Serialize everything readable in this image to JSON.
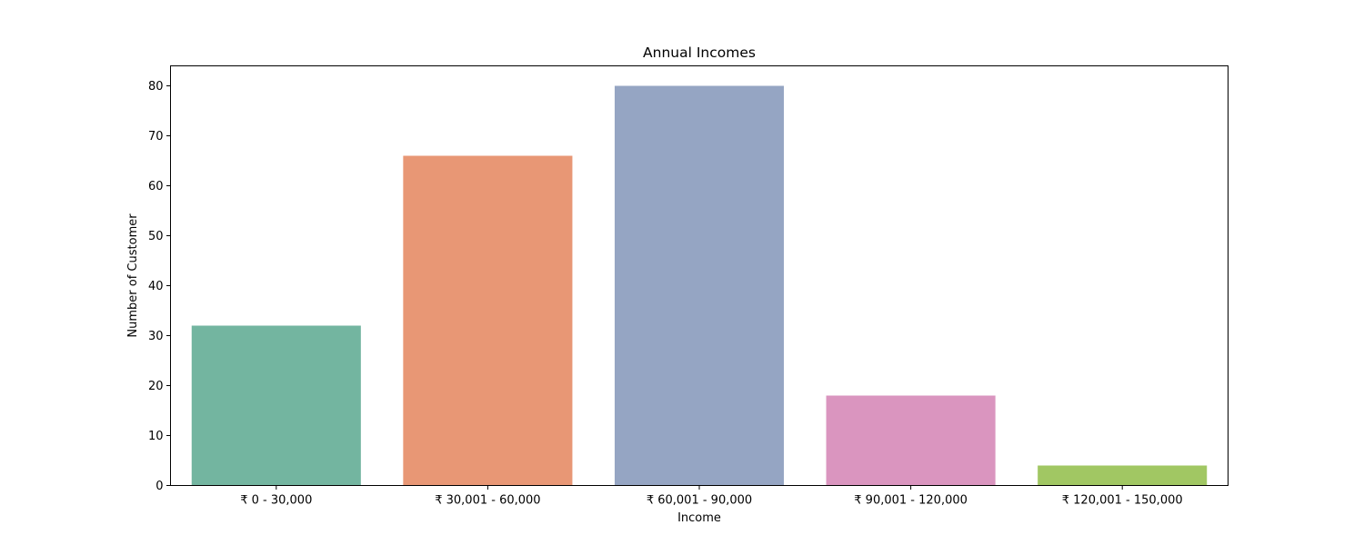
{
  "chart_data": {
    "type": "bar",
    "title": "Annual Incomes",
    "xlabel": "Income",
    "ylabel": "Number of Customer",
    "categories": [
      "₹ 0 - 30,000",
      "₹ 30,001 - 60,000",
      "₹ 60,001 - 90,000",
      "₹ 90,001 - 120,000",
      "₹ 120,001 - 150,000"
    ],
    "values": [
      32,
      66,
      80,
      18,
      4
    ],
    "colors": [
      "#73b5a0",
      "#e89775",
      "#95a5c3",
      "#da95bf",
      "#a1c763"
    ],
    "ylim": [
      0,
      84
    ],
    "yticks": [
      0,
      10,
      20,
      30,
      40,
      50,
      60,
      70,
      80
    ],
    "grid": false,
    "legend": false
  }
}
